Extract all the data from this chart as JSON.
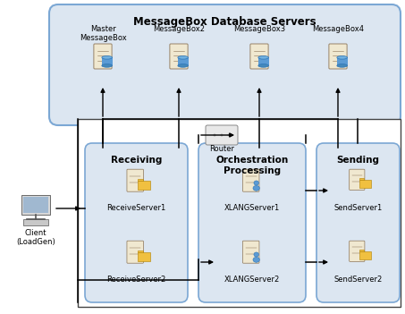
{
  "title": "MessageBox Database Servers",
  "bg_color": "#ffffff",
  "outer_box_color": "#dce6f1",
  "outer_box_edge": "#7ba7d4",
  "inner_box_color": "#dce6f1",
  "inner_box_edge": "#7ba7d4",
  "outer_rect_color": "#ffffff",
  "outer_rect_edge": "#333333",
  "text_color": "#000000",
  "arrow_color": "#000000",
  "msgbox_servers": [
    "Master\nMessageBox",
    "MessageBox2",
    "MessageBox3",
    "MessageBox4"
  ],
  "receiving_label": "Receiving",
  "receiving_servers": [
    "ReceiveServer1",
    "ReceiveServer2"
  ],
  "orch_label": "Orchestration\nProcessing",
  "orch_servers": [
    "XLANGServer1",
    "XLANGServer2"
  ],
  "sending_label": "Sending",
  "sending_servers": [
    "SendServer1",
    "SendServer2"
  ],
  "client_label": "Client\n(LoadGen)",
  "router_label": "Router"
}
